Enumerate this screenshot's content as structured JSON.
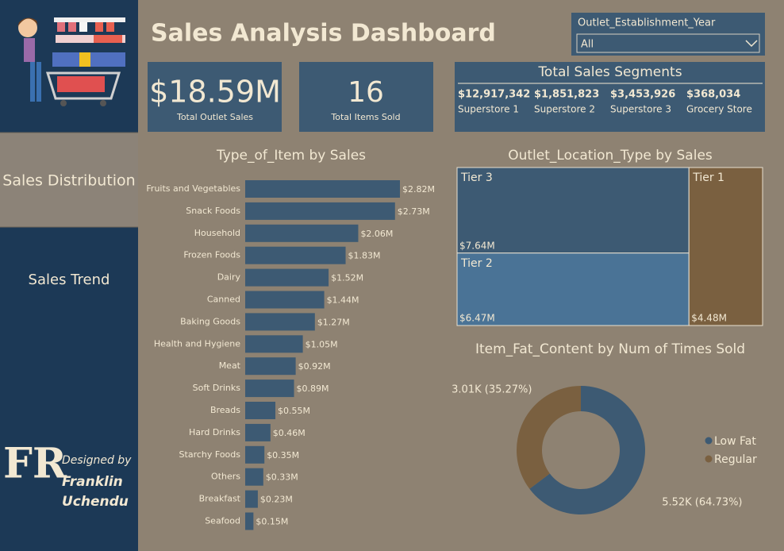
{
  "title": "Sales Analysis Dashboard",
  "filter": {
    "label": "Outlet_Establishment_Year",
    "value": "All"
  },
  "nav": [
    "Sales Distribution",
    "Sales Trend"
  ],
  "credit": {
    "logo": "FR",
    "designed_by": "Designed by",
    "name": [
      "Franklin",
      "Uchendu"
    ]
  },
  "kpis": [
    {
      "value": "$18.59M",
      "label": "Total Outlet Sales"
    },
    {
      "value": "16",
      "label": "Total Items Sold"
    }
  ],
  "segments": {
    "title": "Total Sales Segments",
    "items": [
      {
        "value": "$12,917,342",
        "label": "Superstore 1"
      },
      {
        "value": "$1,851,823",
        "label": "Superstore 2"
      },
      {
        "value": "$3,453,926",
        "label": "Superstore 3"
      },
      {
        "value": "$368,034",
        "label": "Grocery Store"
      }
    ]
  },
  "chart_data": [
    {
      "type": "bar",
      "orientation": "horizontal",
      "title": "Type_of_Item by Sales",
      "color": "#3d5a73",
      "categories": [
        "Fruits and Vegetables",
        "Snack Foods",
        "Household",
        "Frozen Foods",
        "Dairy",
        "Canned",
        "Baking Goods",
        "Health and Hygiene",
        "Meat",
        "Soft Drinks",
        "Breads",
        "Hard Drinks",
        "Starchy Foods",
        "Others",
        "Breakfast",
        "Seafood"
      ],
      "values": [
        2.82,
        2.73,
        2.06,
        1.83,
        1.52,
        1.44,
        1.27,
        1.05,
        0.92,
        0.89,
        0.55,
        0.46,
        0.35,
        0.33,
        0.23,
        0.15
      ],
      "value_labels": [
        "$2.82M",
        "$2.73M",
        "$2.06M",
        "$1.83M",
        "$1.52M",
        "$1.44M",
        "$1.27M",
        "$1.05M",
        "$0.92M",
        "$0.89M",
        "$0.55M",
        "$0.46M",
        "$0.35M",
        "$0.33M",
        "$0.23M",
        "$0.15M"
      ]
    },
    {
      "type": "treemap",
      "title": "Outlet_Location_Type by Sales",
      "categories": [
        "Tier 3",
        "Tier 2",
        "Tier 1"
      ],
      "values": [
        7.64,
        6.47,
        4.48
      ],
      "value_labels": [
        "$7.64M",
        "$6.47M",
        "$4.48M"
      ],
      "colors": [
        "#3d5a73",
        "#4a7396",
        "#7a6040"
      ]
    },
    {
      "type": "donut",
      "title": "Item_Fat_Content by Num of Times Sold",
      "categories": [
        "Low Fat",
        "Regular"
      ],
      "values": [
        5.52,
        3.01
      ],
      "value_labels": [
        "5.52K (64.73%)",
        "3.01K (35.27%)"
      ],
      "colors": [
        "#3d5a73",
        "#7a6040"
      ],
      "legend": "right"
    }
  ]
}
